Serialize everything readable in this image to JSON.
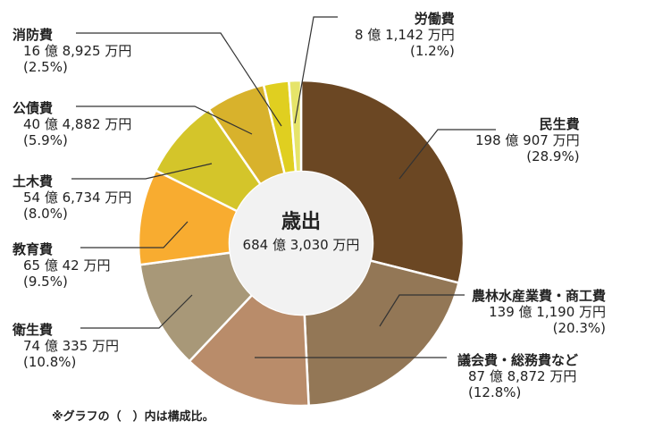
{
  "chart_data": {
    "type": "pie",
    "title": "歳出",
    "total": "684 億 3,030 万円",
    "note": "※グラフの（　）内は構成比。",
    "slices": [
      {
        "name": "民生費",
        "amount": "198 億 907 万円",
        "pct_label": "(28.9%)",
        "value": 28.9,
        "color": "#6b4723"
      },
      {
        "name": "農林水産業費・商工費",
        "amount": "139 億 1,190 万円",
        "pct_label": "(20.3%)",
        "value": 20.3,
        "color": "#937756"
      },
      {
        "name": "議会費・総務費など",
        "amount": "87 億 8,872 万円",
        "pct_label": "(12.8%)",
        "value": 12.8,
        "color": "#b98c6a"
      },
      {
        "name": "衛生費",
        "amount": "74 億 335 万円",
        "pct_label": "(10.8%)",
        "value": 10.8,
        "color": "#a89878"
      },
      {
        "name": "教育費",
        "amount": "65 億 42 万円",
        "pct_label": "(9.5%)",
        "value": 9.5,
        "color": "#f8ac30"
      },
      {
        "name": "土木費",
        "amount": "54 億 6,734 万円",
        "pct_label": "(8.0%)",
        "value": 8.0,
        "color": "#d4c52a"
      },
      {
        "name": "公債費",
        "amount": "40 億 4,882 万円",
        "pct_label": "(5.9%)",
        "value": 5.9,
        "color": "#d8b22c"
      },
      {
        "name": "消防費",
        "amount": "16 億 8,925 万円",
        "pct_label": "(2.5%)",
        "value": 2.5,
        "color": "#e0cf20"
      },
      {
        "name": "労働費",
        "amount": "8 億 1,142 万円",
        "pct_label": "(1.2%)",
        "value": 1.2,
        "color": "#e6e46a"
      }
    ]
  }
}
